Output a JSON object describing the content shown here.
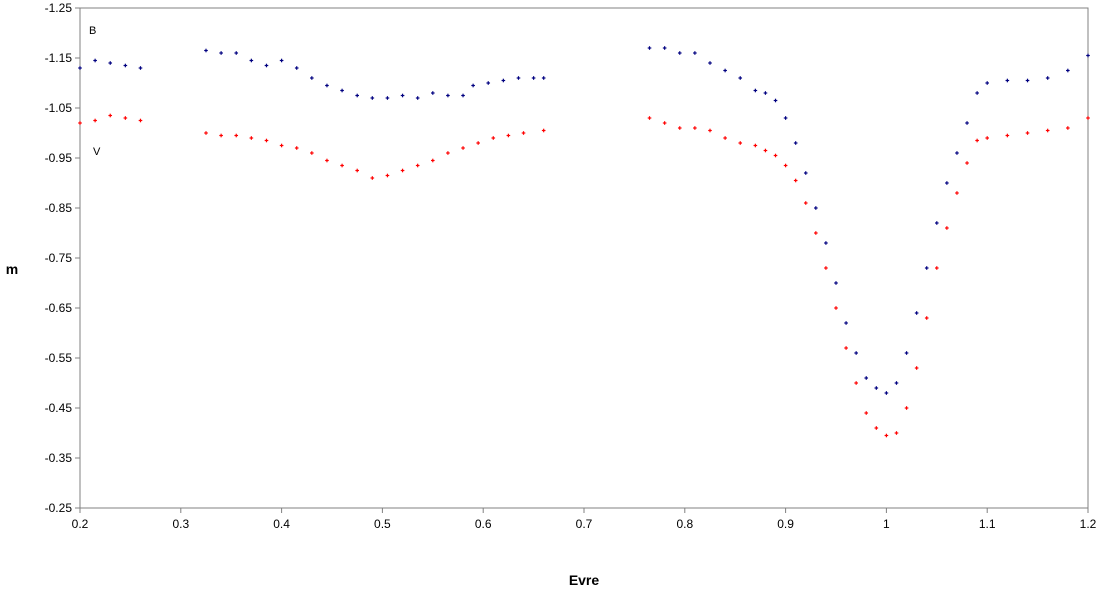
{
  "chart_data": {
    "type": "scatter",
    "title": "",
    "xlabel": "Evre",
    "ylabel": "m",
    "xlim": [
      0.2,
      1.2
    ],
    "ylim": [
      -1.25,
      -0.25
    ],
    "y_reversed": true,
    "grid": false,
    "legend": "none",
    "x_ticks": [
      "0.2",
      "0.3",
      "0.4",
      "0.5",
      "0.6",
      "0.7",
      "0.8",
      "0.9",
      "1",
      "1.1",
      "1.2"
    ],
    "y_ticks": [
      "-1.25",
      "-1.15",
      "-1.05",
      "-0.95",
      "-0.85",
      "-0.75",
      "-0.65",
      "-0.55",
      "-0.45",
      "-0.35",
      "-0.25"
    ],
    "series": [
      {
        "name": "B",
        "color": "#000080",
        "segments": [
          {
            "x": [
              0.2,
              0.215,
              0.23,
              0.245,
              0.26
            ],
            "y": [
              -1.13,
              -1.145,
              -1.14,
              -1.135,
              -1.13
            ]
          },
          {
            "x": [
              0.325,
              0.34,
              0.355,
              0.37,
              0.385,
              0.4,
              0.415,
              0.43,
              0.445,
              0.46,
              0.475,
              0.49,
              0.505,
              0.52,
              0.535,
              0.55,
              0.565,
              0.58
            ],
            "y": [
              -1.165,
              -1.16,
              -1.16,
              -1.145,
              -1.135,
              -1.145,
              -1.13,
              -1.11,
              -1.095,
              -1.085,
              -1.075,
              -1.07,
              -1.07,
              -1.075,
              -1.07,
              -1.08,
              -1.075,
              -1.075
            ]
          },
          {
            "x": [
              0.59,
              0.605,
              0.62,
              0.635,
              0.65,
              0.66
            ],
            "y": [
              -1.095,
              -1.1,
              -1.105,
              -1.11,
              -1.11,
              -1.11
            ]
          },
          {
            "x": [
              0.765,
              0.78,
              0.795,
              0.81,
              0.825,
              0.84,
              0.855,
              0.87,
              0.88,
              0.89,
              0.9,
              0.91,
              0.92,
              0.93,
              0.94,
              0.95,
              0.96,
              0.97,
              0.98,
              0.99,
              1.0,
              1.01,
              1.02,
              1.03,
              1.04,
              1.05,
              1.06,
              1.07,
              1.08,
              1.09,
              1.1,
              1.12,
              1.14,
              1.16,
              1.18,
              1.2
            ],
            "y": [
              -1.17,
              -1.17,
              -1.16,
              -1.16,
              -1.14,
              -1.125,
              -1.11,
              -1.085,
              -1.08,
              -1.065,
              -1.03,
              -0.98,
              -0.92,
              -0.85,
              -0.78,
              -0.7,
              -0.62,
              -0.56,
              -0.51,
              -0.49,
              -0.48,
              -0.5,
              -0.56,
              -0.64,
              -0.73,
              -0.82,
              -0.9,
              -0.96,
              -1.02,
              -1.08,
              -1.1,
              -1.105,
              -1.105,
              -1.11,
              -1.125,
              -1.155
            ]
          }
        ]
      },
      {
        "name": "V",
        "color": "#ff0000",
        "segments": [
          {
            "x": [
              0.2,
              0.215,
              0.23,
              0.245,
              0.26
            ],
            "y": [
              -1.02,
              -1.025,
              -1.035,
              -1.03,
              -1.025
            ]
          },
          {
            "x": [
              0.325,
              0.34,
              0.355,
              0.37,
              0.385,
              0.4,
              0.415,
              0.43,
              0.445,
              0.46,
              0.475,
              0.49,
              0.505,
              0.52,
              0.535,
              0.55,
              0.565,
              0.58,
              0.595,
              0.61,
              0.625,
              0.64,
              0.66
            ],
            "y": [
              -1.0,
              -0.995,
              -0.995,
              -0.99,
              -0.985,
              -0.975,
              -0.97,
              -0.96,
              -0.945,
              -0.935,
              -0.925,
              -0.91,
              -0.915,
              -0.925,
              -0.935,
              -0.945,
              -0.96,
              -0.97,
              -0.98,
              -0.99,
              -0.995,
              -1.0,
              -1.005
            ]
          },
          {
            "x": [
              0.765,
              0.78,
              0.795,
              0.81,
              0.825,
              0.84,
              0.855,
              0.87,
              0.88,
              0.89,
              0.9,
              0.91,
              0.92,
              0.93,
              0.94,
              0.95,
              0.96,
              0.97,
              0.98,
              0.99,
              1.0,
              1.01,
              1.02,
              1.03,
              1.04,
              1.05,
              1.06,
              1.07,
              1.08,
              1.09,
              1.1,
              1.12,
              1.14,
              1.16,
              1.18,
              1.2
            ],
            "y": [
              -1.03,
              -1.02,
              -1.01,
              -1.01,
              -1.005,
              -0.99,
              -0.98,
              -0.975,
              -0.965,
              -0.955,
              -0.935,
              -0.905,
              -0.86,
              -0.8,
              -0.73,
              -0.65,
              -0.57,
              -0.5,
              -0.44,
              -0.41,
              -0.395,
              -0.4,
              -0.45,
              -0.53,
              -0.63,
              -0.73,
              -0.81,
              -0.88,
              -0.94,
              -0.985,
              -0.99,
              -0.995,
              -1.0,
              -1.005,
              -1.01,
              -1.03
            ]
          }
        ]
      }
    ]
  }
}
